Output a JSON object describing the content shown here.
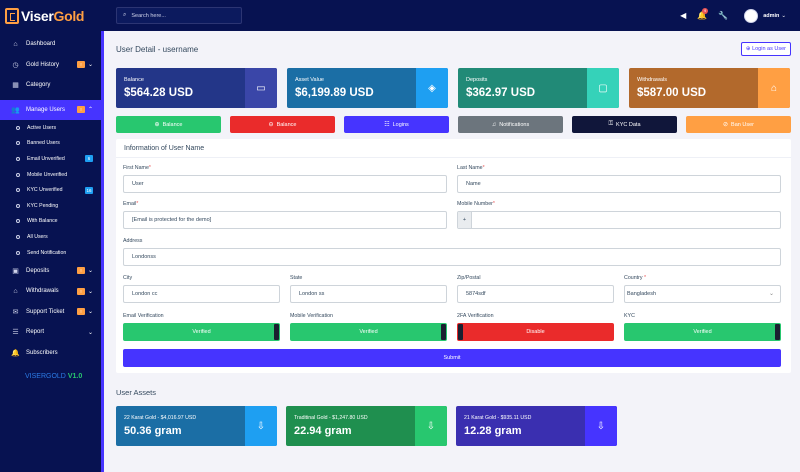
{
  "brand": {
    "name_a": "Viser",
    "name_b": "Gold",
    "version_name": "VISERGOLD",
    "version_num": "V1.0"
  },
  "sidebar": {
    "items": [
      {
        "label": "Dashboard",
        "icon": "home-icon"
      },
      {
        "label": "Gold History",
        "icon": "clock-icon",
        "badge": "!"
      },
      {
        "label": "Category",
        "icon": "grid-icon"
      },
      {
        "label": "Manage Users",
        "icon": "users-icon",
        "badge": "!"
      },
      {
        "label": "Deposits",
        "icon": "wallet-icon",
        "badge": "!"
      },
      {
        "label": "Withdrawals",
        "icon": "bank-icon",
        "badge": "!"
      },
      {
        "label": "Support Ticket",
        "icon": "ticket-icon",
        "badge": "!"
      },
      {
        "label": "Report",
        "icon": "list-icon"
      },
      {
        "label": "Subscribers",
        "icon": "bell-icon"
      }
    ],
    "sub_items": [
      {
        "label": "Active Users"
      },
      {
        "label": "Banned Users"
      },
      {
        "label": "Email Unverified",
        "badge": "6"
      },
      {
        "label": "Mobile Unverified"
      },
      {
        "label": "KYC Unverified",
        "badge": "16"
      },
      {
        "label": "KYC Pending"
      },
      {
        "label": "With Balance"
      },
      {
        "label": "All Users"
      },
      {
        "label": "Send Notification"
      }
    ]
  },
  "topbar": {
    "search_placeholder": "Search here...",
    "notif_count": "9",
    "user": "admin"
  },
  "page": {
    "title": "User Detail - username",
    "login_as_user": "Login as User"
  },
  "cards": [
    {
      "label": "Balance",
      "value": "$564.28 USD",
      "icon": "money-icon",
      "bg": "#233688",
      "accent": "#3a46a8"
    },
    {
      "label": "Asset Value",
      "value": "$6,199.89 USD",
      "icon": "box-icon",
      "bg": "#1b6ea5",
      "accent": "#1e9ff2"
    },
    {
      "label": "Deposits",
      "value": "$362.97 USD",
      "icon": "wallet-icon",
      "bg": "#218a77",
      "accent": "#35d2b9"
    },
    {
      "label": "Withdrawals",
      "value": "$587.00 USD",
      "icon": "bank-icon",
      "bg": "#b2692c",
      "accent": "#ff9f43"
    }
  ],
  "actions": [
    {
      "label": "Balance",
      "icon": "plus-circle-icon",
      "bg": "#28c76f"
    },
    {
      "label": "Balance",
      "icon": "minus-circle-icon",
      "bg": "#ea2b2b"
    },
    {
      "label": "Logins",
      "icon": "list-icon",
      "bg": "#4634ff"
    },
    {
      "label": "Notifications",
      "icon": "bell-icon",
      "bg": "#6c757d"
    },
    {
      "label": "KYC Data",
      "icon": "id-card-icon",
      "bg": "#10163a"
    },
    {
      "label": "Ban User",
      "icon": "ban-icon",
      "bg": "#ff9f43"
    }
  ],
  "form": {
    "title": "Information of User Name",
    "first_name_label": "First Name",
    "first_name": "User",
    "last_name_label": "Last Name",
    "last_name": "Name",
    "email_label": "Email",
    "email": "[Email is protected for the demo]",
    "mobile_label": "Mobile Number",
    "mobile_prefix": "+",
    "mobile": "",
    "address_label": "Address",
    "address": "Londonss",
    "city_label": "City",
    "city": "London cc",
    "state_label": "State",
    "state": "London ss",
    "zip_label": "Zip/Postal",
    "zip": "5874sdf",
    "country_label": "Country",
    "country": "Bangladesh",
    "required_mark": "*",
    "email_verif_label": "Email Verification",
    "email_verif": "Verified",
    "mobile_verif_label": "Mobile Verification",
    "mobile_verif": "Verified",
    "twofa_label": "2FA Verification",
    "twofa": "Disable",
    "kyc_label": "KYC",
    "kyc": "Verified",
    "submit": "Submit"
  },
  "assets": {
    "title": "User Assets",
    "items": [
      {
        "label": "22 Karat Gold - $4,016.97 USD",
        "value": "50.36 gram",
        "bg": "#1b6ea5",
        "accent": "#1e9ff2"
      },
      {
        "label": "Traditinal Gold - $1,247.80 USD",
        "value": "22.94 gram",
        "bg": "#1f8f4f",
        "accent": "#28c76f"
      },
      {
        "label": "21 Karat Gold - $935.11 USD",
        "value": "12.28 gram",
        "bg": "#3a2fb0",
        "accent": "#4634ff"
      }
    ]
  }
}
